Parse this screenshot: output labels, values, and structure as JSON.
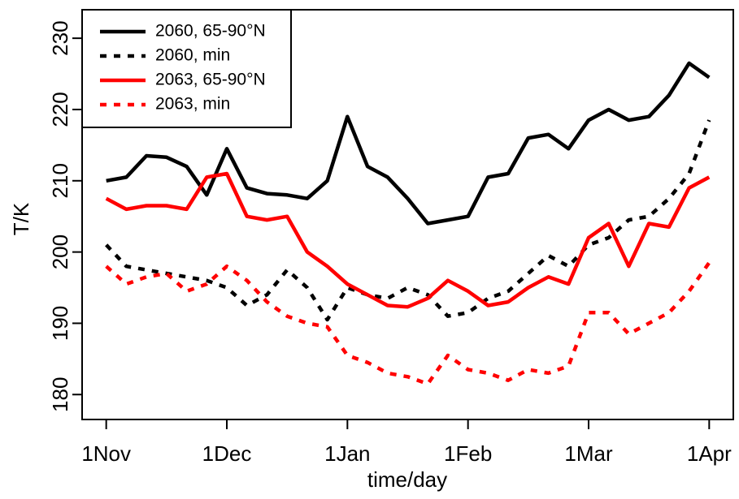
{
  "chart_data": {
    "type": "line",
    "x_label": "time/day",
    "y_label": "T/K",
    "x": [
      0,
      5,
      10,
      15,
      20,
      25,
      30,
      35,
      40,
      45,
      50,
      55,
      60,
      65,
      70,
      75,
      80,
      85,
      90,
      95,
      100,
      105,
      110,
      115,
      120,
      125,
      130,
      135,
      140,
      145,
      150
    ],
    "xlim": [
      -6,
      156
    ],
    "xticks": [
      {
        "value": 0,
        "label": "1Nov"
      },
      {
        "value": 30,
        "label": "1Dec"
      },
      {
        "value": 60,
        "label": "1Jan"
      },
      {
        "value": 90,
        "label": "1Feb"
      },
      {
        "value": 120,
        "label": "1Mar"
      },
      {
        "value": 150,
        "label": "1Apr"
      }
    ],
    "ylim": [
      176.5,
      234
    ],
    "yticks": [
      180,
      190,
      200,
      210,
      220,
      230
    ],
    "legend": "top-left",
    "series": [
      {
        "name": "2060, 65-90°N",
        "color": "#000000",
        "dash": false,
        "values": [
          210,
          210.5,
          213.5,
          213.3,
          212,
          208,
          214.5,
          209,
          208.2,
          208,
          207.5,
          210,
          219,
          212,
          210.5,
          207.5,
          204,
          204.5,
          205,
          210.5,
          211,
          216,
          216.5,
          214.5,
          218.5,
          220,
          218.5,
          219,
          222,
          226.5,
          224.5
        ]
      },
      {
        "name": "2060, min",
        "color": "#000000",
        "dash": true,
        "values": [
          201,
          198,
          197.5,
          197,
          196.5,
          196,
          195,
          192.5,
          194,
          197.5,
          195,
          190.5,
          195,
          194,
          193.5,
          195,
          194,
          191,
          191.5,
          193.5,
          194.5,
          197,
          199.5,
          198,
          201,
          202,
          204.5,
          205,
          207.5,
          211,
          218.5
        ]
      },
      {
        "name": "2063, 65-90°N",
        "color": "#ff0000",
        "dash": false,
        "values": [
          207.5,
          206,
          206.5,
          206.5,
          206,
          210.5,
          211,
          205,
          204.5,
          205,
          200,
          198,
          195.5,
          194,
          192.5,
          192.3,
          193.5,
          196,
          194.5,
          192.5,
          193,
          195,
          196.5,
          195.5,
          202,
          204,
          198,
          204,
          203.5,
          209,
          210.5
        ]
      },
      {
        "name": "2063, min",
        "color": "#ff0000",
        "dash": true,
        "values": [
          198,
          195.5,
          196.5,
          197,
          194.5,
          195.5,
          198,
          196,
          193,
          191,
          190,
          189.5,
          185.5,
          184.5,
          183,
          182.5,
          181.5,
          185.5,
          183.5,
          183,
          182,
          183.5,
          183,
          184,
          191.5,
          191.5,
          188.5,
          190,
          191.5,
          194.5,
          198.5
        ]
      }
    ]
  }
}
